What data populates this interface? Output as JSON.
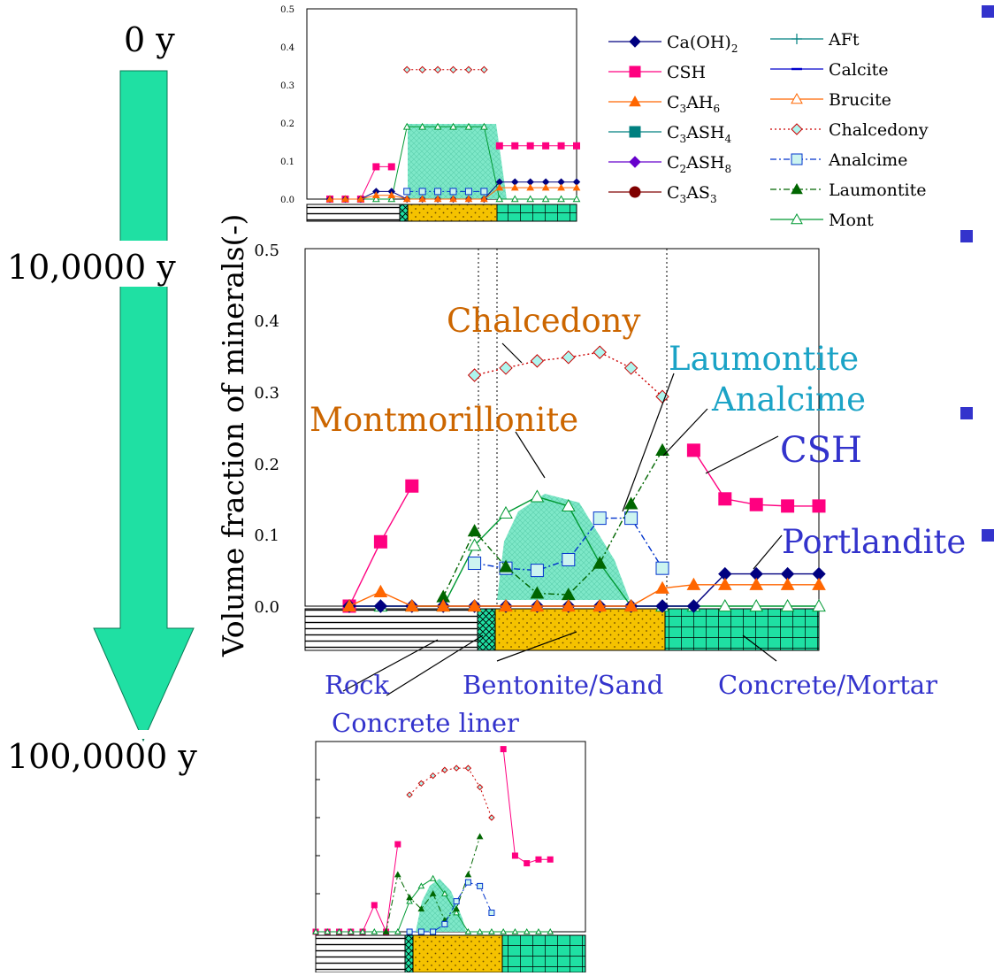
{
  "colors": {
    "arrow": "#1FE0A3",
    "arrow_stroke": "#0a7a55",
    "label_blue": "#3333CC",
    "label_orange": "#CC6600",
    "label_cyan": "#1BA3C6",
    "bullet": "#3333CC",
    "bentonite_fill": "#F5C200",
    "concrete_fill": "#1FE0A3",
    "mont_fill": "#7EE8C8"
  },
  "timeline": {
    "t0": "0 y",
    "t1": "10,0000 y",
    "t2": "100,0000 y"
  },
  "ylabel": "Volume fraction of minerals(-)",
  "legend": [
    {
      "label": "Ca(OH)",
      "sub": "2",
      "suffix": "",
      "marker": "diamond",
      "color": "#000080",
      "dash": "solid"
    },
    {
      "label": "CSH",
      "sub": "",
      "suffix": "",
      "marker": "square",
      "color": "#FF0080",
      "dash": "solid"
    },
    {
      "label": "C",
      "sub": "3",
      "suffix": "AH",
      "sub2": "6",
      "marker": "triangle",
      "color": "#FF6600",
      "dash": "solid"
    },
    {
      "label": "C",
      "sub": "3",
      "suffix": "ASH",
      "sub2": "4",
      "marker": "square",
      "color": "#008080",
      "dash": "solid"
    },
    {
      "label": "C",
      "sub": "2",
      "suffix": "ASH",
      "sub2": "8",
      "marker": "diamond",
      "color": "#6600CC",
      "dash": "solid"
    },
    {
      "label": "C",
      "sub": "3",
      "suffix": "AS",
      "sub2": "3",
      "marker": "circle",
      "color": "#800000",
      "dash": "solid"
    },
    {
      "label": "AFt",
      "sub": "",
      "suffix": "",
      "marker": "plus",
      "color": "#008080",
      "dash": "solid"
    },
    {
      "label": "Calcite",
      "sub": "",
      "suffix": "",
      "marker": "dash",
      "color": "#0000CC",
      "dash": "solid"
    },
    {
      "label": "Brucite",
      "sub": "",
      "suffix": "",
      "marker": "triangle-open",
      "color": "#FF6600",
      "dash": "solid"
    },
    {
      "label": "Chalcedony",
      "sub": "",
      "suffix": "",
      "marker": "diamond-open",
      "color": "#CC0000",
      "dash": "dot"
    },
    {
      "label": "Analcime",
      "sub": "",
      "suffix": "",
      "marker": "square-open",
      "color": "#0033CC",
      "dash": "dashdot"
    },
    {
      "label": "Laumontite",
      "sub": "",
      "suffix": "",
      "marker": "triangle",
      "color": "#006600",
      "dash": "dashdot"
    },
    {
      "label": "Mont",
      "sub": "",
      "suffix": "",
      "marker": "triangle-open",
      "color": "#009933",
      "dash": "solid"
    }
  ],
  "annotations": {
    "chalcedony": "Chalcedony",
    "montmorillonite": "Montmorillonite",
    "laumontite": "Laumontite",
    "analcime": "Analcime",
    "csh": "CSH",
    "portlandite": "Portlandite"
  },
  "zones": {
    "rock": "Rock",
    "bentonite": "Bentonite/Sand",
    "concrete": "Concrete/Mortar",
    "liner": "Concrete liner"
  },
  "chart_data": [
    {
      "id": "top",
      "type": "line",
      "x": [
        1,
        2,
        3,
        4,
        5,
        6,
        7,
        8,
        9,
        10,
        11,
        12,
        13,
        14,
        15,
        16,
        17
      ],
      "ylim": [
        0,
        0.5
      ],
      "yticks": [
        "0.0",
        "0.1",
        "0.2",
        "0.3",
        "0.4",
        "0.5"
      ],
      "grid": false,
      "series": [
        {
          "name": "Chalcedony",
          "values": [
            null,
            null,
            null,
            null,
            null,
            0.34,
            0.34,
            0.34,
            0.34,
            0.34,
            0.34,
            null,
            null,
            null,
            null,
            null,
            null
          ]
        },
        {
          "name": "Mont",
          "values": [
            0.0,
            0.0,
            0.0,
            0.0,
            0.0,
            0.19,
            0.19,
            0.19,
            0.19,
            0.19,
            0.19,
            0.0,
            0.0,
            0.0,
            0.0,
            0.0,
            0.0
          ]
        },
        {
          "name": "CSH",
          "values": [
            0.0,
            0.0,
            0.0,
            0.085,
            0.085,
            null,
            null,
            null,
            null,
            null,
            null,
            0.14,
            0.14,
            0.14,
            0.14,
            0.14,
            0.14
          ]
        },
        {
          "name": "Ca(OH)2",
          "values": [
            0.0,
            0.0,
            0.0,
            0.02,
            0.02,
            0.0,
            0.0,
            0.0,
            0.0,
            0.0,
            0.0,
            0.045,
            0.045,
            0.045,
            0.045,
            0.045,
            0.045
          ]
        },
        {
          "name": "Analcime",
          "values": [
            null,
            null,
            null,
            null,
            null,
            0.02,
            0.02,
            0.02,
            0.02,
            0.02,
            0.02,
            null,
            null,
            null,
            null,
            null,
            null
          ]
        },
        {
          "name": "C3AH6",
          "values": [
            0.0,
            0.0,
            0.0,
            0.01,
            0.01,
            0.0,
            0.0,
            0.0,
            0.0,
            0.0,
            0.0,
            0.03,
            0.03,
            0.03,
            0.03,
            0.03,
            0.03
          ]
        }
      ]
    },
    {
      "id": "main",
      "type": "line",
      "x": [
        1,
        2,
        3,
        4,
        5,
        6,
        7,
        8,
        9,
        10,
        11,
        12,
        13,
        14,
        15,
        16
      ],
      "ylim": [
        0,
        0.5
      ],
      "yticks": [
        "0.0",
        "0.1",
        "0.2",
        "0.3",
        "0.4",
        "0.5"
      ],
      "grid": false,
      "series": [
        {
          "name": "Chalcedony",
          "values": [
            null,
            null,
            null,
            null,
            0.323,
            0.333,
            0.343,
            0.348,
            0.355,
            0.333,
            0.293,
            null,
            null,
            null,
            null,
            null
          ]
        },
        {
          "name": "Mont",
          "values": [
            0.0,
            0.0,
            0.0,
            0.0,
            0.085,
            0.13,
            0.153,
            0.14,
            0.06,
            0.0,
            0.0,
            0.0,
            0.0,
            0.0,
            0.0,
            0.0
          ]
        },
        {
          "name": "Analcime",
          "values": [
            null,
            null,
            null,
            null,
            0.06,
            0.053,
            0.05,
            0.065,
            0.123,
            0.123,
            0.053,
            null,
            null,
            null,
            null,
            null
          ]
        },
        {
          "name": "Laumontite",
          "values": [
            null,
            null,
            null,
            0.013,
            0.105,
            0.055,
            0.018,
            0.016,
            0.06,
            0.143,
            0.218,
            null,
            null,
            null,
            null,
            null
          ]
        },
        {
          "name": "CSH",
          "values": [
            0.0,
            0.09,
            0.168,
            null,
            null,
            null,
            null,
            null,
            null,
            null,
            null,
            0.218,
            0.15,
            0.142,
            0.14,
            0.14
          ]
        },
        {
          "name": "Ca(OH)2",
          "values": [
            0.0,
            0.0,
            0.0,
            0.0,
            0.0,
            0.0,
            0.0,
            0.0,
            0.0,
            0.0,
            0.0,
            0.0,
            0.045,
            0.045,
            0.045,
            0.045
          ]
        },
        {
          "name": "C3AH6",
          "values": [
            0.0,
            0.02,
            0.0,
            0.0,
            0.0,
            0.0,
            0.0,
            0.0,
            0.0,
            0.0,
            0.025,
            0.03,
            0.03,
            0.03,
            0.03,
            0.03
          ]
        }
      ]
    },
    {
      "id": "bottom",
      "type": "line",
      "x": [
        1,
        2,
        3,
        4,
        5,
        6,
        7,
        8,
        9,
        10,
        11,
        12,
        13,
        14,
        15,
        16,
        17,
        18,
        19,
        20,
        21,
        22,
        23,
        24
      ],
      "ylim": [
        0,
        0.5
      ],
      "grid": false,
      "series": [
        {
          "name": "Chalcedony",
          "values": [
            null,
            null,
            null,
            null,
            null,
            null,
            null,
            null,
            0.36,
            0.39,
            0.41,
            0.425,
            0.43,
            0.43,
            0.38,
            0.3,
            null,
            null,
            null,
            null,
            null,
            null,
            null,
            null
          ]
        },
        {
          "name": "CSH",
          "values": [
            0.0,
            0.0,
            0.0,
            0.0,
            0.0,
            0.07,
            0.0,
            0.23,
            null,
            null,
            null,
            null,
            null,
            null,
            null,
            null,
            0.48,
            0.2,
            0.18,
            0.19,
            0.19,
            null,
            null,
            null
          ]
        },
        {
          "name": "Mont",
          "values": [
            0.0,
            0.0,
            0.0,
            0.0,
            0.0,
            0.0,
            0.0,
            0.0,
            0.08,
            0.12,
            0.14,
            0.1,
            0.05,
            0.0,
            0.0,
            0.0,
            0.0,
            0.0,
            0.0,
            0.0,
            0.0,
            null,
            null,
            null
          ]
        },
        {
          "name": "Laumontite",
          "values": [
            null,
            null,
            null,
            null,
            null,
            null,
            0.0,
            0.15,
            0.09,
            0.06,
            0.1,
            0.03,
            0.06,
            0.15,
            0.25,
            null,
            null,
            null,
            null,
            null,
            null,
            null,
            null,
            null
          ]
        },
        {
          "name": "Analcime",
          "values": [
            null,
            null,
            null,
            null,
            null,
            null,
            null,
            null,
            0.0,
            0.0,
            0.0,
            0.02,
            0.08,
            0.13,
            0.12,
            0.05,
            null,
            null,
            null,
            null,
            null,
            null,
            null,
            null
          ]
        }
      ]
    }
  ]
}
